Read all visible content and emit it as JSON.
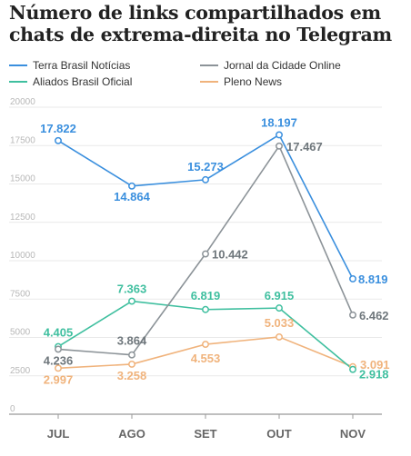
{
  "chart_data": {
    "type": "line",
    "title": "Número de links compartilhados em chats de extrema-direita no Telegram",
    "categories": [
      "JUL",
      "AGO",
      "SET",
      "OUT",
      "NOV"
    ],
    "y_ticks": [
      "0",
      "2500",
      "5000",
      "7500",
      "10000",
      "12500",
      "15000",
      "17500",
      "20000"
    ],
    "ylim": [
      0,
      20000
    ],
    "grid": true,
    "legend_position": "top",
    "series": [
      {
        "name": "Terra Brasil Notícias",
        "color": "#3a8fde",
        "values": [
          17822,
          14864,
          15273,
          18197,
          8819
        ],
        "labels": [
          "17.822",
          "14.864",
          "15.273",
          "18.197",
          "8.819"
        ]
      },
      {
        "name": "Jornal da Cidade Online",
        "color": "#8c9398",
        "values": [
          4236,
          3864,
          10442,
          17467,
          6462
        ],
        "labels": [
          "4.236",
          "3.864",
          "10.442",
          "17.467",
          "6.462"
        ]
      },
      {
        "name": "Aliados Brasil Oficial",
        "color": "#3fbf9f",
        "values": [
          4405,
          7363,
          6819,
          6915,
          2918
        ],
        "labels": [
          "4.405",
          "7.363",
          "6.819",
          "6.915",
          "2.918"
        ]
      },
      {
        "name": "Pleno News",
        "color": "#f0b37c",
        "values": [
          2997,
          3258,
          4553,
          5033,
          3091
        ],
        "labels": [
          "2.997",
          "3.258",
          "4.553",
          "5.033",
          "3.091"
        ]
      }
    ]
  }
}
